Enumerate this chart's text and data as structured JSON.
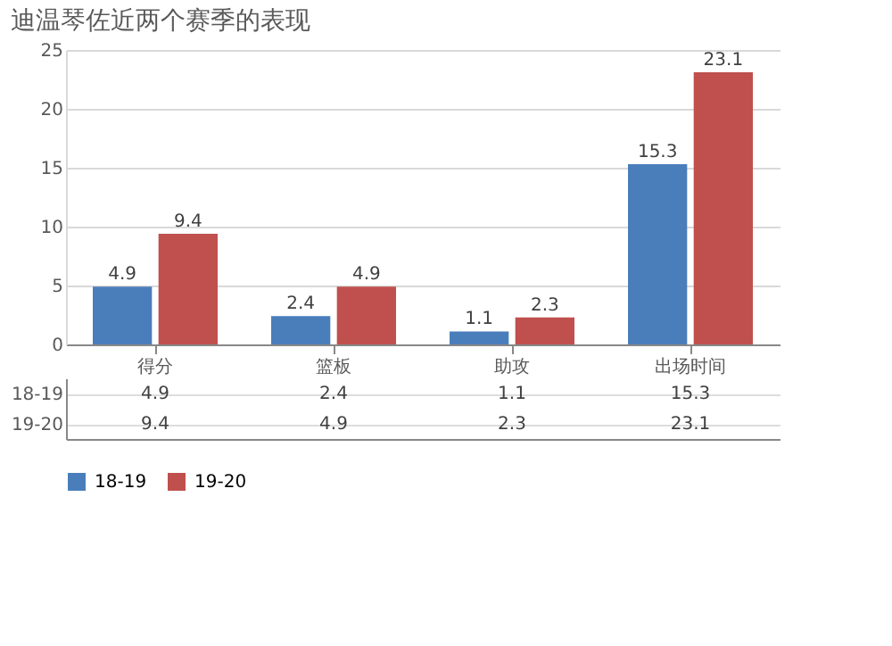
{
  "chart_data": {
    "type": "bar",
    "title": "迪温琴佐近两个赛季的表现",
    "categories": [
      "得分",
      "篮板",
      "助攻",
      "出场时间"
    ],
    "series": [
      {
        "name": "18-19",
        "color": "#4a7ebb",
        "values": [
          4.9,
          2.4,
          1.1,
          15.3
        ]
      },
      {
        "name": "19-20",
        "color": "#c0504d",
        "values": [
          9.4,
          4.9,
          2.3,
          23.1
        ]
      }
    ],
    "annotations": [
      {
        "text": "4.9",
        "x": "得分",
        "y": 4.9
      },
      {
        "text": "9.4",
        "x": "得分",
        "y": 9.4
      },
      {
        "text": "2.4",
        "x": "篮板",
        "y": 2.4
      },
      {
        "text": "4.9",
        "x": "篮板",
        "y": 4.9
      },
      {
        "text": "1.1",
        "x": "助攻",
        "y": 1.1
      },
      {
        "text": "2.3",
        "x": "助攻",
        "y": 2.3
      },
      {
        "text": "15.3",
        "x": "出场时间",
        "y": 15.3
      },
      {
        "text": "23.1",
        "x": "出场时间",
        "y": 23.1
      }
    ],
    "ylim": [
      0,
      25
    ],
    "yticks": [
      0,
      5,
      10,
      15,
      20,
      25
    ],
    "grid": "y",
    "legend": "bottom",
    "data_labels": true
  }
}
